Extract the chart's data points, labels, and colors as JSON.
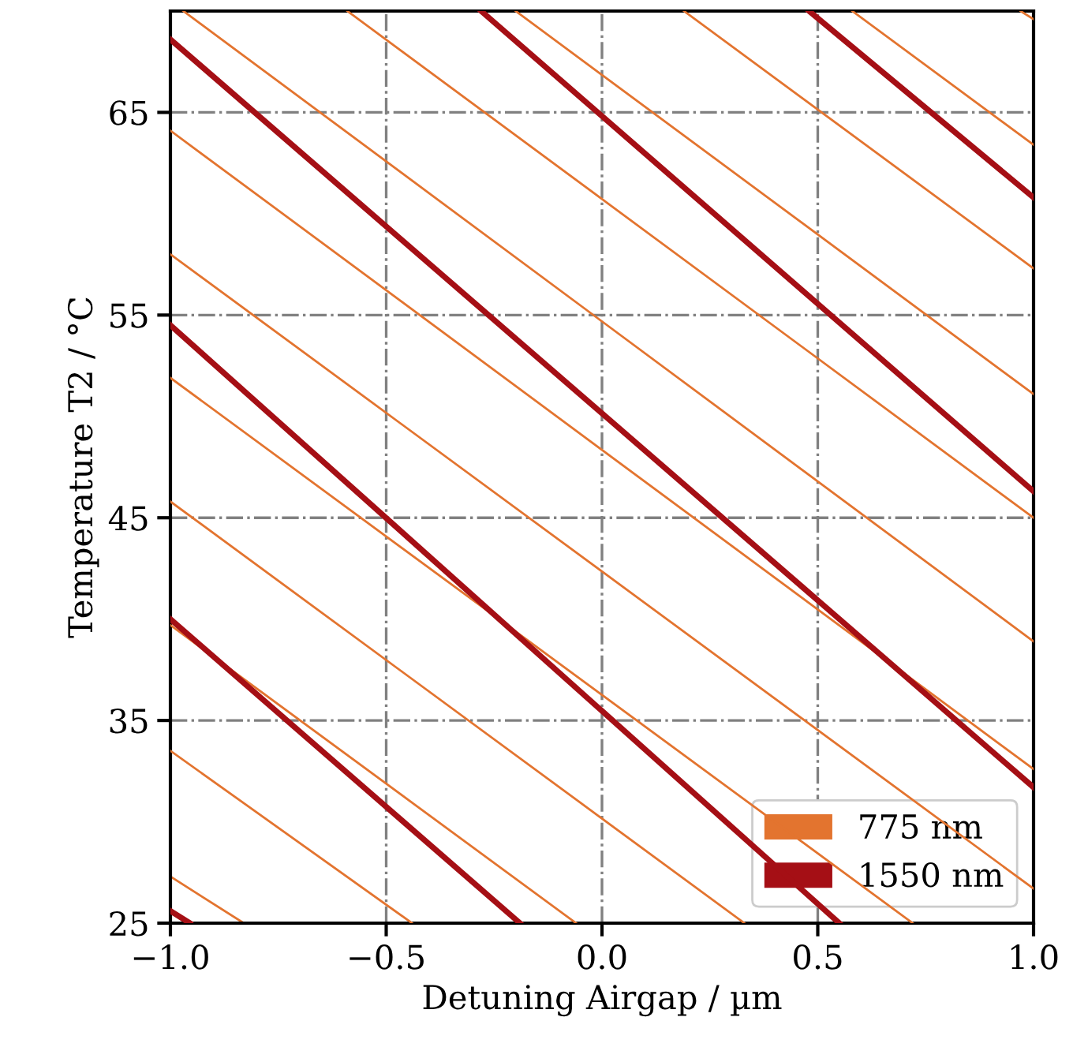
{
  "chart_data": {
    "type": "line",
    "xlabel": "Detuning Airgap / µm",
    "ylabel": "Temperature T2 / °C",
    "xlim": [
      -1.0,
      1.0
    ],
    "ylim": [
      25,
      70
    ],
    "xticks": [
      {
        "value": -1,
        "label": "−1.0"
      },
      {
        "value": -0.5,
        "label": "−0.5"
      },
      {
        "value": 0,
        "label": "0.0"
      },
      0.5,
      {
        "value": 1,
        "label": "1.0"
      }
    ],
    "yticks": [
      25,
      35,
      45,
      55,
      65
    ],
    "grid": true,
    "legend": "bottom right",
    "marker": "none",
    "line_style": "solid",
    "series": [
      {
        "name": "775 nm",
        "color": "#e3742f",
        "x": [
          -1,
          -0.83
        ],
        "values": [
          27.3,
          25
        ]
      },
      {
        "color": "#e3742f",
        "x": [
          -1,
          -0.44
        ],
        "values": [
          33.5,
          25
        ]
      },
      {
        "color": "#e3742f",
        "x": [
          -1,
          -0.06
        ],
        "values": [
          39.7,
          25
        ]
      },
      {
        "color": "#e3742f",
        "x": [
          -1,
          0.33
        ],
        "values": [
          45.8,
          25
        ]
      },
      {
        "color": "#e3742f",
        "x": [
          -1,
          0.72
        ],
        "values": [
          51.9,
          25
        ]
      },
      {
        "color": "#e3742f",
        "x": [
          -1,
          1
        ],
        "values": [
          58.0,
          26.7
        ]
      },
      {
        "color": "#e3742f",
        "x": [
          -1,
          1
        ],
        "values": [
          64.1,
          32.6
        ]
      },
      {
        "color": "#e3742f",
        "x": [
          -0.97,
          1
        ],
        "values": [
          70,
          38.9
        ]
      },
      {
        "color": "#e3742f",
        "x": [
          -0.59,
          1
        ],
        "values": [
          70,
          45.0
        ]
      },
      {
        "color": "#e3742f",
        "x": [
          -0.2,
          1
        ],
        "values": [
          70,
          51.1
        ]
      },
      {
        "color": "#e3742f",
        "x": [
          0.19,
          1
        ],
        "values": [
          70,
          57.3
        ]
      },
      {
        "color": "#e3742f",
        "x": [
          0.58,
          1
        ],
        "values": [
          70,
          63.4
        ]
      },
      {
        "color": "#e3742f",
        "x": [
          0.97,
          1
        ],
        "values": [
          70,
          69.6
        ]
      },
      {
        "name": "1550 nm",
        "color": "#a50f15",
        "x": [
          -1,
          -0.955
        ],
        "values": [
          25.6,
          25
        ]
      },
      {
        "color": "#a50f15",
        "x": [
          -1,
          -0.19
        ],
        "values": [
          40.0,
          25
        ]
      },
      {
        "color": "#a50f15",
        "x": [
          -1,
          0.55
        ],
        "values": [
          54.5,
          25
        ]
      },
      {
        "color": "#a50f15",
        "x": [
          -1,
          1
        ],
        "values": [
          68.6,
          31.7
        ]
      },
      {
        "color": "#a50f15",
        "x": [
          -0.28,
          1
        ],
        "values": [
          70,
          46.3
        ]
      },
      {
        "color": "#a50f15",
        "x": [
          0.48,
          1
        ],
        "values": [
          70,
          60.8
        ]
      }
    ]
  }
}
